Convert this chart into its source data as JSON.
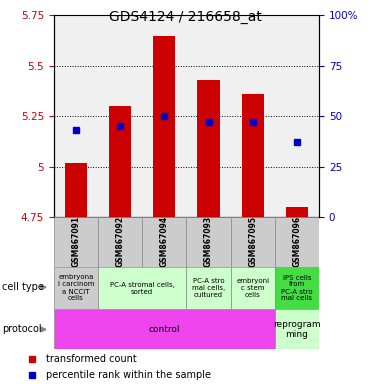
{
  "title": "GDS4124 / 216658_at",
  "samples": [
    "GSM867091",
    "GSM867092",
    "GSM867094",
    "GSM867093",
    "GSM867095",
    "GSM867096"
  ],
  "bar_bottom": 4.75,
  "bar_top": [
    5.02,
    5.3,
    5.65,
    5.43,
    5.36,
    4.8
  ],
  "percentile_values": [
    5.18,
    5.2,
    5.25,
    5.22,
    5.22,
    5.12
  ],
  "ylim_left": [
    4.75,
    5.75
  ],
  "ylim_right": [
    0,
    100
  ],
  "yticks_left": [
    4.75,
    5.0,
    5.25,
    5.5,
    5.75
  ],
  "yticks_right": [
    0,
    25,
    50,
    75,
    100
  ],
  "ytick_labels_left": [
    "4.75",
    "5",
    "5.25",
    "5.5",
    "5.75"
  ],
  "ytick_labels_right": [
    "0",
    "25",
    "50",
    "75",
    "100%"
  ],
  "bar_color": "#cc0000",
  "percentile_color": "#0000cc",
  "hlines": [
    5.0,
    5.25,
    5.5
  ],
  "plot_bg": "#f0f0f0",
  "cell_type_data": [
    [
      0,
      1,
      "#cccccc",
      "embryona\nl carcinom\na NCCIT\ncells"
    ],
    [
      1,
      3,
      "#ccffcc",
      "PC-A stromal cells,\nsorted"
    ],
    [
      3,
      4,
      "#ccffcc",
      "PC-A stro\nmal cells,\ncultured"
    ],
    [
      4,
      5,
      "#ccffcc",
      "embryoni\nc stem\ncells"
    ],
    [
      5,
      6,
      "#44dd44",
      "iPS cells\nfrom\nPC-A stro\nmal cells"
    ]
  ],
  "proto_data": [
    [
      0,
      5,
      "#ee44ee",
      "control"
    ],
    [
      5,
      6,
      "#ccffcc",
      "reprogram\nming"
    ]
  ],
  "title_fontsize": 10,
  "tick_fontsize": 7.5,
  "sample_fontsize": 5.5,
  "cell_fontsize": 5.0,
  "proto_fontsize": 6.5,
  "label_fontsize": 7,
  "legend_fontsize": 7
}
